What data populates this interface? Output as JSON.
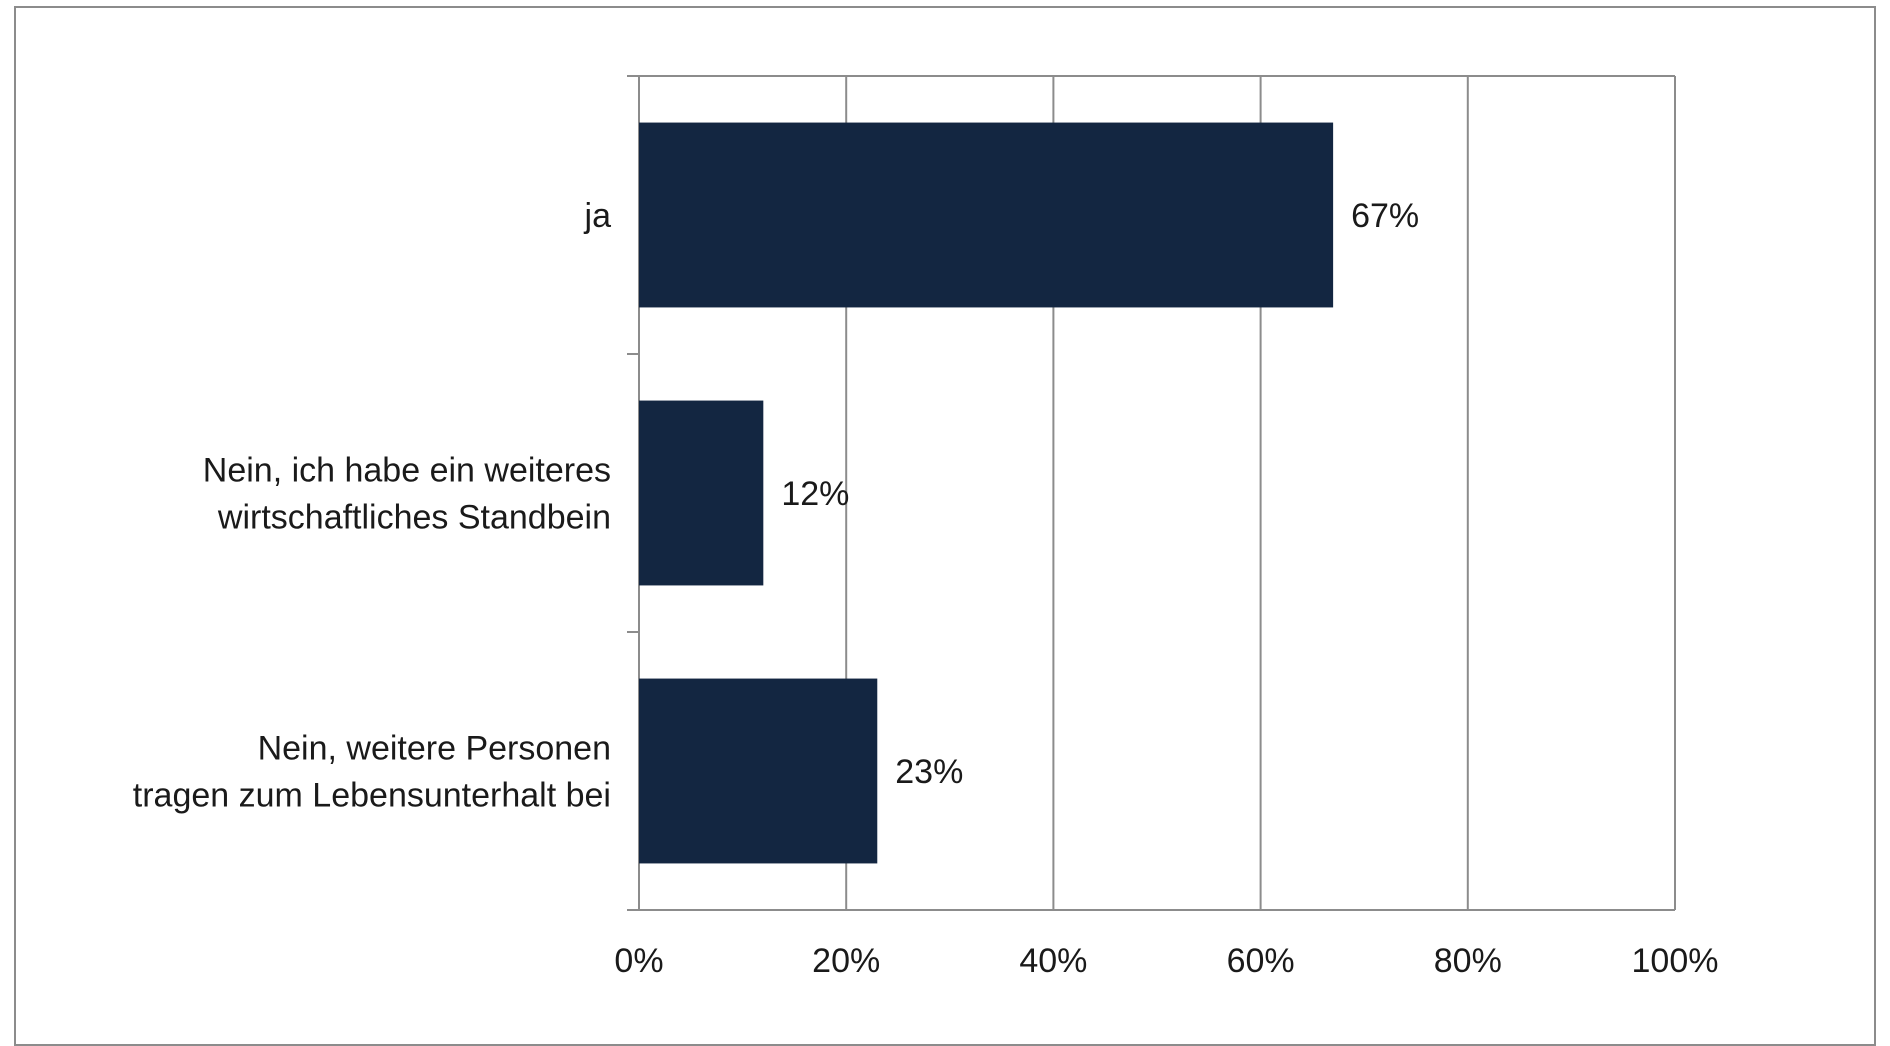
{
  "chart_data": {
    "type": "bar",
    "orientation": "horizontal",
    "categories": [
      [
        "ja"
      ],
      [
        "Nein, ich habe ein weiteres",
        "wirtschaftliches Standbein"
      ],
      [
        "Nein, weitere Personen",
        "tragen zum Lebensunterhalt bei"
      ]
    ],
    "values": [
      67,
      12,
      23
    ],
    "value_labels": [
      "67%",
      "12%",
      "23%"
    ],
    "xlim": [
      0,
      100
    ],
    "x_ticks": [
      0,
      20,
      40,
      60,
      80,
      100
    ],
    "x_tick_labels": [
      "0%",
      "20%",
      "40%",
      "60%",
      "80%",
      "100%"
    ],
    "grid": "vertical",
    "legend": "none",
    "bar_color": "#132641",
    "grid_color": "#8c8c8c"
  }
}
